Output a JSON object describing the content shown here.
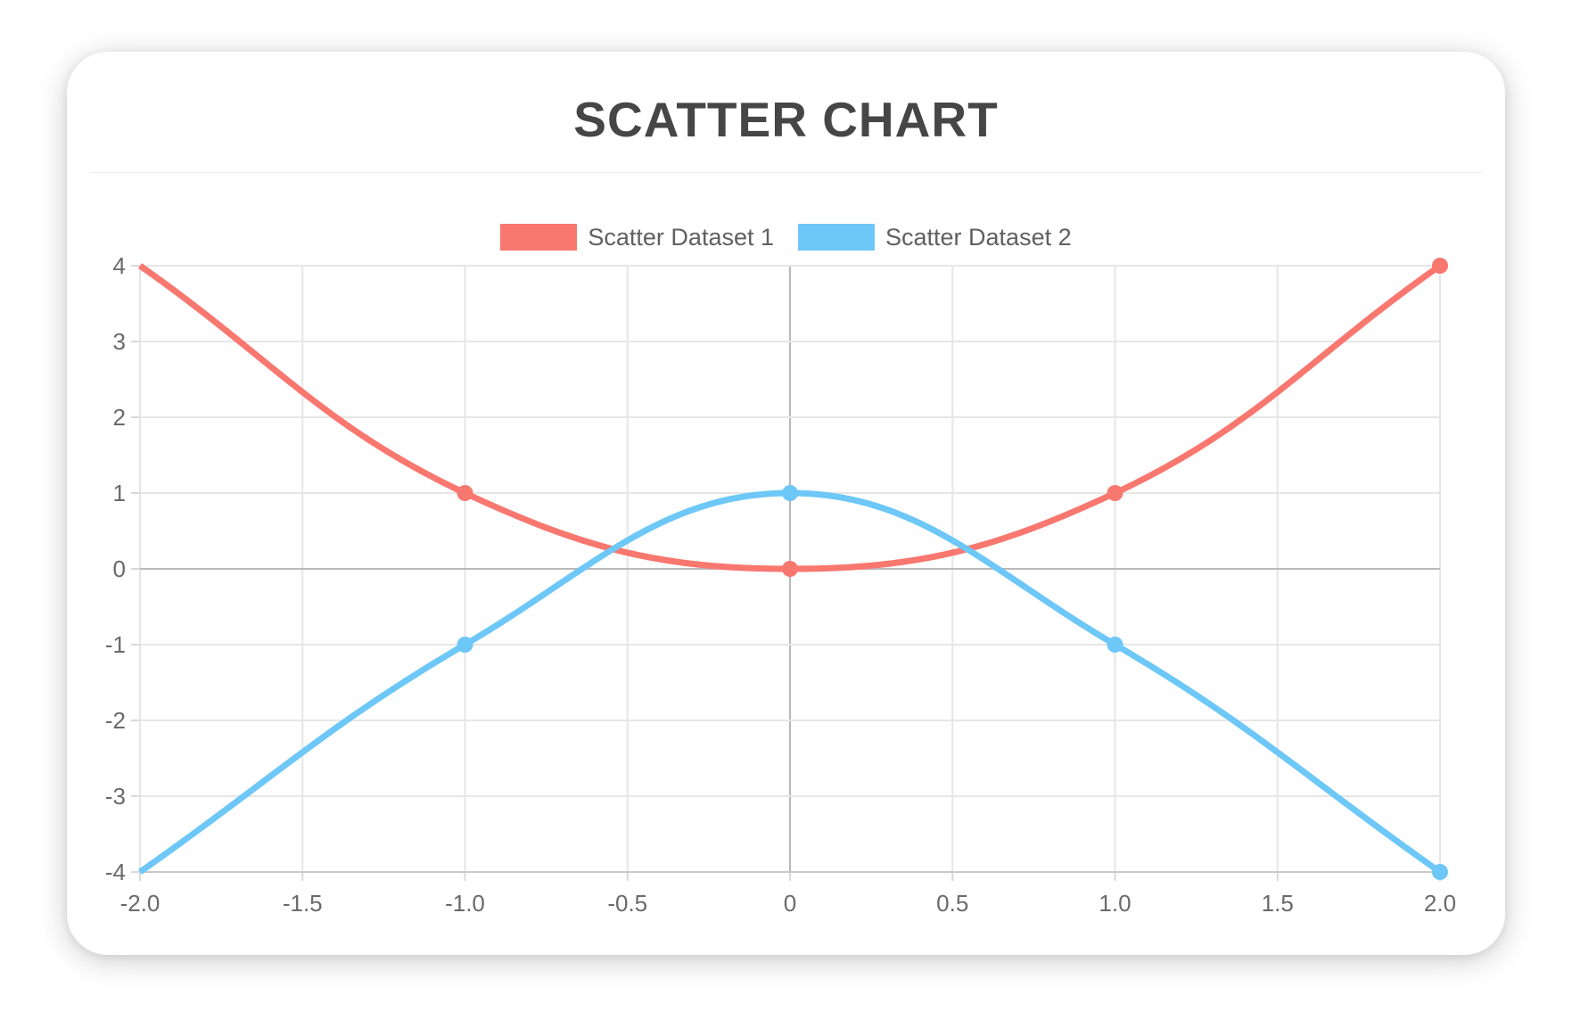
{
  "chart_data": {
    "type": "scatter",
    "title": "SCATTER CHART",
    "legend_position": "top",
    "grid": true,
    "line_tension": 0.4,
    "xlim": [
      -2,
      2
    ],
    "ylim": [
      -4,
      4
    ],
    "x_ticks": [
      {
        "value": -2,
        "label": "-2.0"
      },
      {
        "value": -1.5,
        "label": "-1.5"
      },
      {
        "value": -1,
        "label": "-1.0"
      },
      {
        "value": -0.5,
        "label": "-0.5"
      },
      {
        "value": 0,
        "label": "0"
      },
      {
        "value": 0.5,
        "label": "0.5"
      },
      {
        "value": 1,
        "label": "1.0"
      },
      {
        "value": 1.5,
        "label": "1.5"
      },
      {
        "value": 2,
        "label": "2.0"
      }
    ],
    "y_ticks": [
      {
        "value": 4,
        "label": "4"
      },
      {
        "value": 3,
        "label": "3"
      },
      {
        "value": 2,
        "label": "2"
      },
      {
        "value": 1,
        "label": "1"
      },
      {
        "value": 0,
        "label": "0"
      },
      {
        "value": -1,
        "label": "-1"
      },
      {
        "value": -2,
        "label": "-2"
      },
      {
        "value": -3,
        "label": "-3"
      },
      {
        "value": -4,
        "label": "-4"
      }
    ],
    "series": [
      {
        "name": "Scatter Dataset 1",
        "color": "#F8776F",
        "points": [
          {
            "x": -2,
            "y": 4,
            "marker": false
          },
          {
            "x": -1,
            "y": 1
          },
          {
            "x": 0,
            "y": 0
          },
          {
            "x": 1,
            "y": 1
          },
          {
            "x": 2,
            "y": 4
          }
        ]
      },
      {
        "name": "Scatter Dataset 2",
        "color": "#6DC7F7",
        "points": [
          {
            "x": -2,
            "y": -4,
            "marker": false
          },
          {
            "x": -1,
            "y": -1
          },
          {
            "x": 0,
            "y": 1
          },
          {
            "x": 1,
            "y": -1
          },
          {
            "x": 2,
            "y": -4
          }
        ]
      }
    ],
    "colors": {
      "grid": "#E6E6E6",
      "zero_line": "#B9B9B9",
      "axis_border": "#CACACA",
      "tick": "#D9D9D9",
      "tick_label": "#6A6A6A",
      "title_text": "#464646",
      "legend_text": "#606060"
    }
  }
}
